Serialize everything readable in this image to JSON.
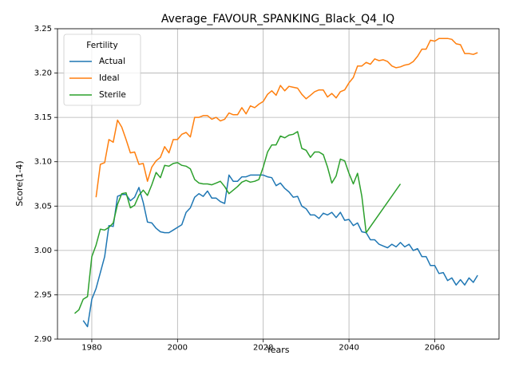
{
  "chart_data": {
    "type": "line",
    "title": "Average_FAVOUR_SPANKING_Black_Q4_IQ",
    "xlabel": "Years",
    "ylabel": "Score(1-4)",
    "xlim": [
      1972,
      2075
    ],
    "ylim": [
      2.9,
      3.25
    ],
    "x_ticks": [
      1980,
      2000,
      2020,
      2040,
      2060
    ],
    "y_ticks": [
      2.9,
      2.95,
      3.0,
      3.05,
      3.1,
      3.15,
      3.2,
      3.25
    ],
    "x_tick_labels": [
      "1980",
      "2000",
      "2020",
      "2040",
      "2060"
    ],
    "y_tick_labels": [
      "2.90",
      "2.95",
      "3.00",
      "3.05",
      "3.10",
      "3.15",
      "3.20",
      "3.25"
    ],
    "grid": true,
    "legend": {
      "title": "Fertility",
      "position": "top-left"
    },
    "series": [
      {
        "name": "Actual",
        "color": "#1f77b4",
        "x": [
          1978,
          1979,
          1980,
          1981,
          1982,
          1983,
          1984,
          1985,
          1986,
          1987,
          1988,
          1989,
          1990,
          1991,
          1992,
          1993,
          1994,
          1995,
          1996,
          1997,
          1998,
          1999,
          2000,
          2001,
          2002,
          2003,
          2004,
          2005,
          2006,
          2007,
          2008,
          2009,
          2010,
          2011,
          2012,
          2013,
          2014,
          2015,
          2016,
          2017,
          2018,
          2019,
          2020,
          2021,
          2022,
          2023,
          2024,
          2025,
          2026,
          2027,
          2028,
          2029,
          2030,
          2031,
          2032,
          2033,
          2034,
          2035,
          2036,
          2037,
          2038,
          2039,
          2040,
          2041,
          2042,
          2043,
          2044,
          2045,
          2046,
          2047,
          2048,
          2049,
          2050,
          2051,
          2052,
          2053,
          2054,
          2055,
          2056,
          2057,
          2058,
          2059,
          2060,
          2061,
          2062,
          2063,
          2064,
          2065,
          2066,
          2067,
          2068,
          2069,
          2070
        ],
        "values": [
          2.921,
          2.914,
          2.945,
          2.957,
          2.975,
          2.993,
          3.028,
          3.027,
          3.061,
          3.063,
          3.063,
          3.056,
          3.06,
          3.071,
          3.054,
          3.032,
          3.031,
          3.025,
          3.021,
          3.02,
          3.02,
          3.023,
          3.026,
          3.029,
          3.043,
          3.048,
          3.06,
          3.064,
          3.061,
          3.067,
          3.059,
          3.059,
          3.055,
          3.053,
          3.085,
          3.078,
          3.078,
          3.083,
          3.083,
          3.085,
          3.085,
          3.085,
          3.085,
          3.083,
          3.082,
          3.073,
          3.076,
          3.07,
          3.066,
          3.06,
          3.061,
          3.05,
          3.047,
          3.04,
          3.04,
          3.036,
          3.042,
          3.04,
          3.043,
          3.037,
          3.043,
          3.034,
          3.035,
          3.028,
          3.031,
          3.021,
          3.02,
          3.012,
          3.012,
          3.007,
          3.005,
          3.003,
          3.007,
          3.004,
          3.009,
          3.004,
          3.007,
          3.0,
          3.002,
          2.993,
          2.993,
          2.983,
          2.983,
          2.974,
          2.975,
          2.966,
          2.969,
          2.961,
          2.967,
          2.961,
          2.969,
          2.964,
          2.972
        ]
      },
      {
        "name": "Ideal",
        "color": "#ff7f0e",
        "x": [
          1981,
          1982,
          1983,
          1984,
          1985,
          1986,
          1987,
          1988,
          1989,
          1990,
          1991,
          1992,
          1993,
          1994,
          1995,
          1996,
          1997,
          1998,
          1999,
          2000,
          2001,
          2002,
          2003,
          2004,
          2005,
          2006,
          2007,
          2008,
          2009,
          2010,
          2011,
          2012,
          2013,
          2014,
          2015,
          2016,
          2017,
          2018,
          2019,
          2020,
          2021,
          2022,
          2023,
          2024,
          2025,
          2026,
          2027,
          2028,
          2029,
          2030,
          2031,
          2032,
          2033,
          2034,
          2035,
          2036,
          2037,
          2038,
          2039,
          2040,
          2041,
          2042,
          2043,
          2044,
          2045,
          2046,
          2047,
          2048,
          2049,
          2050,
          2051,
          2052,
          2053,
          2054,
          2055,
          2056,
          2057,
          2058,
          2059,
          2060,
          2061,
          2062,
          2063,
          2064,
          2065,
          2066,
          2067,
          2068,
          2069,
          2070
        ],
        "values": [
          3.06,
          3.097,
          3.099,
          3.125,
          3.122,
          3.147,
          3.139,
          3.125,
          3.11,
          3.111,
          3.097,
          3.098,
          3.078,
          3.094,
          3.101,
          3.105,
          3.117,
          3.11,
          3.125,
          3.125,
          3.131,
          3.133,
          3.128,
          3.15,
          3.15,
          3.152,
          3.152,
          3.148,
          3.15,
          3.146,
          3.148,
          3.155,
          3.153,
          3.153,
          3.161,
          3.154,
          3.163,
          3.161,
          3.165,
          3.168,
          3.176,
          3.18,
          3.175,
          3.186,
          3.18,
          3.185,
          3.184,
          3.183,
          3.176,
          3.171,
          3.175,
          3.179,
          3.181,
          3.181,
          3.173,
          3.177,
          3.172,
          3.179,
          3.181,
          3.189,
          3.195,
          3.208,
          3.208,
          3.212,
          3.21,
          3.216,
          3.214,
          3.215,
          3.213,
          3.208,
          3.206,
          3.207,
          3.209,
          3.21,
          3.213,
          3.219,
          3.227,
          3.227,
          3.237,
          3.236,
          3.239,
          3.239,
          3.239,
          3.238,
          3.233,
          3.232,
          3.222,
          3.222,
          3.221,
          3.223
        ]
      },
      {
        "name": "Sterile",
        "color": "#2ca02c",
        "x": [
          1976,
          1977,
          1978,
          1979,
          1980,
          1981,
          1982,
          1983,
          1984,
          1985,
          1986,
          1987,
          1988,
          1989,
          1990,
          1991,
          1992,
          1993,
          1994,
          1995,
          1996,
          1997,
          1998,
          1999,
          2000,
          2001,
          2002,
          2003,
          2004,
          2005,
          2006,
          2007,
          2008,
          2009,
          2010,
          2011,
          2012,
          2013,
          2014,
          2015,
          2016,
          2017,
          2018,
          2019,
          2020,
          2021,
          2022,
          2023,
          2024,
          2025,
          2026,
          2027,
          2028,
          2029,
          2030,
          2031,
          2032,
          2033,
          2034,
          2035,
          2036,
          2037,
          2038,
          2039,
          2040,
          2041,
          2042,
          2043,
          2044,
          2052
        ],
        "values": [
          2.929,
          2.933,
          2.945,
          2.948,
          2.993,
          3.006,
          3.024,
          3.023,
          3.026,
          3.031,
          3.052,
          3.064,
          3.065,
          3.048,
          3.051,
          3.062,
          3.068,
          3.062,
          3.074,
          3.088,
          3.082,
          3.096,
          3.095,
          3.098,
          3.099,
          3.096,
          3.095,
          3.092,
          3.08,
          3.076,
          3.075,
          3.075,
          3.074,
          3.076,
          3.078,
          3.072,
          3.064,
          3.068,
          3.072,
          3.077,
          3.079,
          3.077,
          3.078,
          3.08,
          3.094,
          3.111,
          3.119,
          3.119,
          3.129,
          3.127,
          3.13,
          3.131,
          3.134,
          3.115,
          3.113,
          3.105,
          3.111,
          3.111,
          3.108,
          3.094,
          3.076,
          3.084,
          3.103,
          3.101,
          3.087,
          3.075,
          3.087,
          3.061,
          3.02,
          3.075
        ]
      }
    ]
  }
}
